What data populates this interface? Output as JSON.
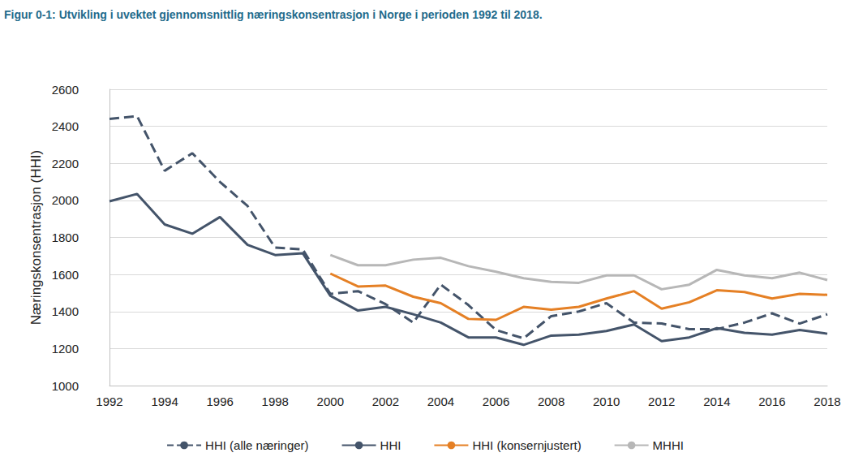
{
  "chart_data": {
    "type": "line",
    "title": "Figur 0-1: Utvikling i uvektet gjennomsnittlig næringskonsentrasjon i Norge i perioden 1992 til 2018.",
    "y_label": "Næringskonsentrasjon (HHI)",
    "x": [
      1992,
      1993,
      1994,
      1995,
      1996,
      1997,
      1998,
      1999,
      2000,
      2001,
      2002,
      2003,
      2004,
      2005,
      2006,
      2007,
      2008,
      2009,
      2010,
      2011,
      2012,
      2013,
      2014,
      2015,
      2016,
      2017,
      2018
    ],
    "series": [
      {
        "name": "HHI (alle næringer)",
        "color": "#44546a",
        "line_style": "dashed",
        "values": [
          2440,
          2455,
          2160,
          2255,
          2100,
          1970,
          1745,
          1735,
          1495,
          1510,
          1440,
          1340,
          1545,
          1435,
          1300,
          1255,
          1375,
          1400,
          1445,
          1340,
          1335,
          1305,
          1305,
          1340,
          1390,
          1335,
          1385
        ]
      },
      {
        "name": "HHI",
        "color": "#44546a",
        "line_style": "solid",
        "values": [
          1995,
          2035,
          1870,
          1820,
          1910,
          1760,
          1705,
          1715,
          1485,
          1405,
          1425,
          1385,
          1340,
          1260,
          1260,
          1220,
          1270,
          1275,
          1295,
          1330,
          1240,
          1260,
          1310,
          1285,
          1275,
          1300,
          1280
        ]
      },
      {
        "name": "HHI (konsernjustert)",
        "color": "#e58025",
        "line_style": "solid",
        "values": [
          null,
          null,
          null,
          null,
          null,
          null,
          null,
          null,
          1605,
          1535,
          1540,
          1480,
          1445,
          1360,
          1355,
          1425,
          1410,
          1425,
          1470,
          1510,
          1415,
          1450,
          1515,
          1505,
          1470,
          1495,
          1490
        ]
      },
      {
        "name": "MHHI",
        "color": "#b7b7b7",
        "line_style": "solid",
        "values": [
          null,
          null,
          null,
          null,
          null,
          null,
          null,
          null,
          1705,
          1650,
          1650,
          1680,
          1690,
          1645,
          1615,
          1580,
          1560,
          1555,
          1595,
          1595,
          1520,
          1545,
          1625,
          1595,
          1580,
          1610,
          1570
        ]
      }
    ],
    "xlim": [
      1992,
      2018
    ],
    "xticks": [
      1992,
      1994,
      1996,
      1998,
      2000,
      2002,
      2004,
      2006,
      2008,
      2010,
      2012,
      2014,
      2016,
      2018
    ],
    "ylim": [
      1000,
      2600
    ],
    "yticks": [
      1000,
      1200,
      1400,
      1600,
      1800,
      2000,
      2200,
      2400,
      2600
    ],
    "grid": true,
    "legend": "bottom"
  }
}
